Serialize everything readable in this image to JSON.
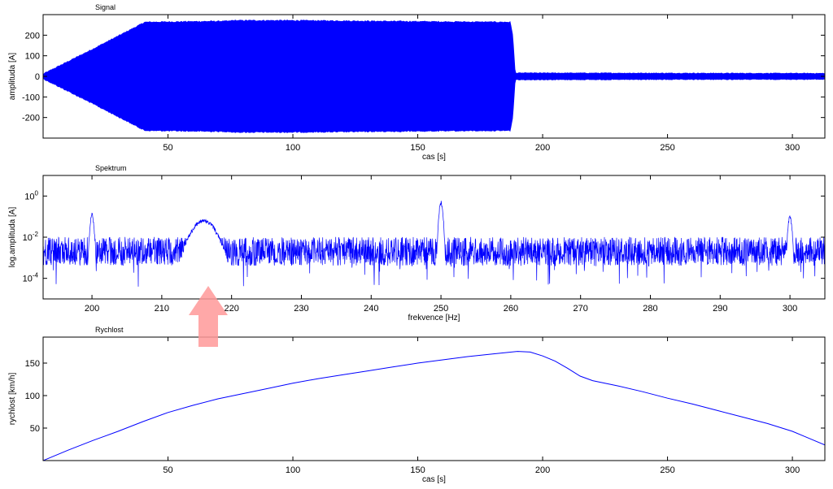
{
  "chart_data": [
    {
      "type": "line",
      "title": "Signal",
      "xlabel": "cas [s]",
      "ylabel": "amplituda [A]",
      "xlim": [
        0,
        313
      ],
      "ylim": [
        -300,
        300
      ],
      "xticks": [
        50,
        100,
        150,
        200,
        250,
        300
      ],
      "yticks": [
        -200,
        -100,
        0,
        100,
        200
      ],
      "series_color": "#0000ff",
      "envelope": {
        "t": [
          0,
          20,
          40,
          40.5,
          75,
          75.5,
          100,
          130,
          160,
          187,
          188,
          189,
          313
        ],
        "amplitude": [
          8,
          130,
          255,
          260,
          265,
          268,
          268,
          265,
          262,
          260,
          200,
          14,
          12
        ]
      }
    },
    {
      "type": "line",
      "title": "Spektrum",
      "xlabel": "frekvence [Hz]",
      "ylabel": "log.amplituda [A]",
      "xlim": [
        193,
        305
      ],
      "ylim": [
        1e-05,
        10
      ],
      "yscale": "log",
      "xticks": [
        200,
        210,
        220,
        230,
        240,
        250,
        260,
        270,
        280,
        290,
        300
      ],
      "yticks": [
        {
          "value": 1,
          "label": "10",
          "exp": "0"
        },
        {
          "value": 0.01,
          "label": "10",
          "exp": "-2"
        },
        {
          "value": 0.0001,
          "label": "10",
          "exp": "-4"
        }
      ],
      "series_color": "#0000ff",
      "noise_floor": 0.003,
      "peaks": [
        {
          "freq": 200,
          "value": 0.15
        },
        {
          "freq": 216,
          "value": 0.08
        },
        {
          "freq": 250,
          "value": 0.6
        },
        {
          "freq": 300,
          "value": 0.12
        }
      ]
    },
    {
      "type": "line",
      "title": "Rychlost",
      "xlabel": "cas [s]",
      "ylabel": "rychlost [km/h]",
      "xlim": [
        0,
        313
      ],
      "ylim": [
        0,
        190
      ],
      "xticks": [
        50,
        100,
        150,
        200,
        250,
        300
      ],
      "yticks": [
        50,
        100,
        150
      ],
      "series_color": "#0000ff",
      "points": {
        "x": [
          0,
          10,
          20,
          30,
          40,
          50,
          60,
          70,
          80,
          90,
          100,
          110,
          120,
          130,
          140,
          150,
          160,
          170,
          180,
          190,
          195,
          200,
          205,
          210,
          215,
          220,
          230,
          240,
          250,
          260,
          270,
          280,
          290,
          300,
          305,
          313
        ],
        "y": [
          0,
          16,
          31,
          45,
          60,
          74,
          85,
          95,
          103,
          111,
          119,
          126,
          132,
          138,
          144,
          150,
          155,
          160,
          164,
          168,
          167,
          161,
          153,
          142,
          130,
          123,
          115,
          106,
          96,
          87,
          77,
          67,
          57,
          45,
          37,
          24
        ]
      }
    }
  ],
  "annotation": {
    "arrow": "up-arrow",
    "color": "#ff9999"
  }
}
